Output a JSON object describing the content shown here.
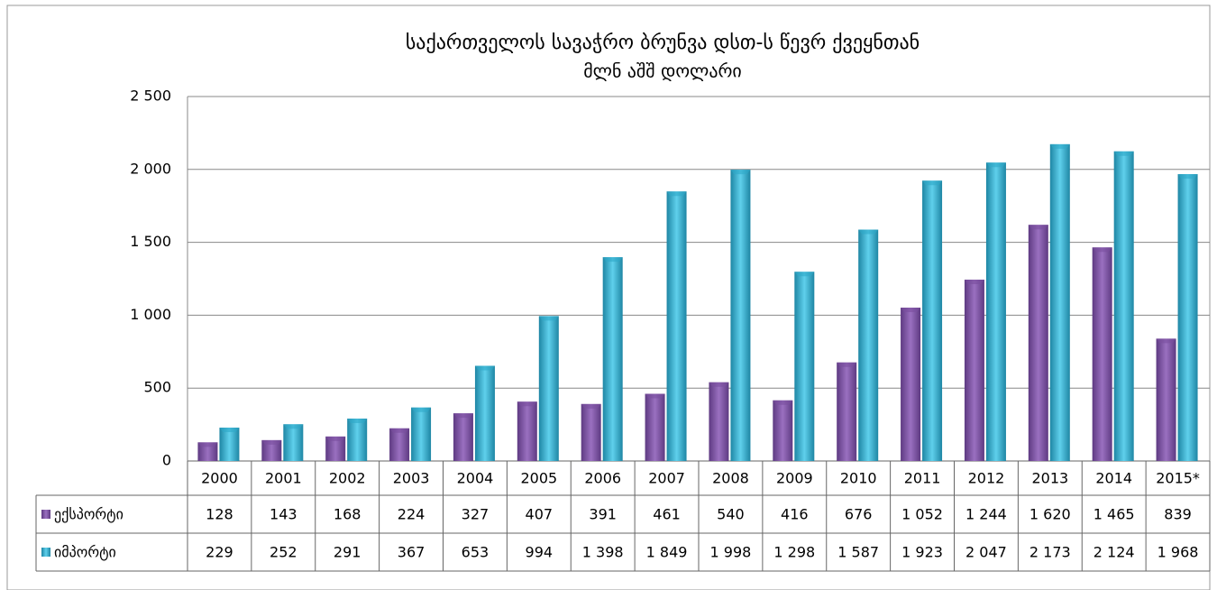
{
  "chart_data": {
    "type": "bar",
    "title": "საქართველოს სავაჭრო ბრუნვა დსთ-ს წევრ ქვეყნთან",
    "subtitle": "მლნ აშშ დოლარი",
    "categories": [
      "2000",
      "2001",
      "2002",
      "2003",
      "2004",
      "2005",
      "2006",
      "2007",
      "2008",
      "2009",
      "2010",
      "2011",
      "2012",
      "2013",
      "2014",
      "2015*"
    ],
    "series": [
      {
        "name": "ექსპორტი",
        "color": "#7a4f9f",
        "values": [
          128,
          143,
          168,
          224,
          327,
          407,
          391,
          461,
          540,
          416,
          676,
          1052,
          1244,
          1620,
          1465,
          839
        ],
        "value_labels": [
          "128",
          "143",
          "168",
          "224",
          "327",
          "407",
          "391",
          "461",
          "540",
          "416",
          "676",
          "1 052",
          "1 244",
          "1 620",
          "1 465",
          "839"
        ]
      },
      {
        "name": "იმპორტი",
        "color": "#2fa8c8",
        "values": [
          229,
          252,
          291,
          367,
          653,
          994,
          1398,
          1849,
          1998,
          1298,
          1587,
          1923,
          2047,
          2173,
          2124,
          1968
        ],
        "value_labels": [
          "229",
          "252",
          "291",
          "367",
          "653",
          "994",
          "1 398",
          "1 849",
          "1 998",
          "1 298",
          "1 587",
          "1 923",
          "2 047",
          "2 173",
          "2 124",
          "1 968"
        ]
      }
    ],
    "ylim": [
      0,
      2500
    ],
    "yticks": [
      0,
      500,
      {
        "value": 1000,
        "label": "1 000"
      },
      {
        "value": 1500,
        "label": "1 500"
      },
      {
        "value": 2000,
        "label": "2 000"
      },
      {
        "value": 2500,
        "label": "2 500"
      }
    ],
    "grid": true
  }
}
